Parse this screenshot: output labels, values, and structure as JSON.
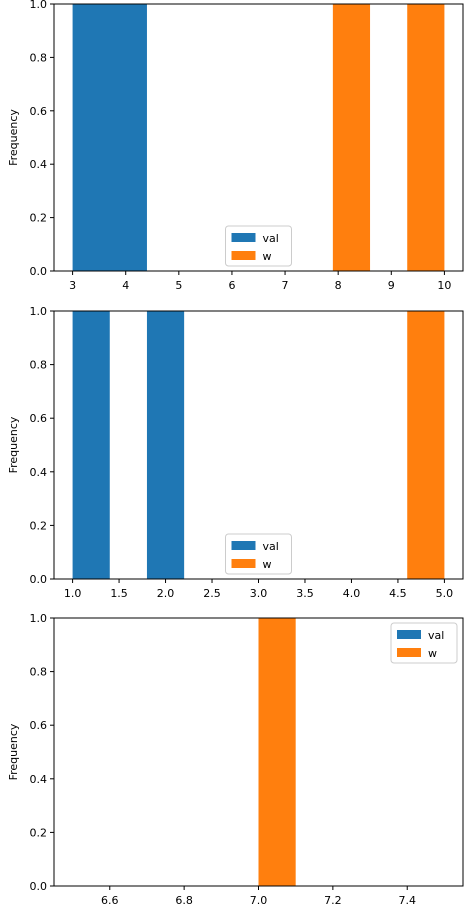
{
  "chart_data": [
    {
      "type": "histogram",
      "ylabel": "Frequency",
      "xlim": [
        2.65,
        10.35
      ],
      "ylim": [
        0,
        1.0
      ],
      "xticks": [
        "3",
        "4",
        "5",
        "6",
        "7",
        "8",
        "9",
        "10"
      ],
      "yticks": [
        "0.0",
        "0.2",
        "0.4",
        "0.6",
        "0.8",
        "1.0"
      ],
      "legend_position": "bottom-center",
      "series": [
        {
          "name": "val",
          "color": "#1f77b4",
          "bars": [
            {
              "x0": 3.0,
              "x1": 4.4,
              "count": 1
            }
          ]
        },
        {
          "name": "w",
          "color": "#ff7f0e",
          "bars": [
            {
              "x0": 7.9,
              "x1": 8.6,
              "count": 1
            },
            {
              "x0": 9.3,
              "x1": 10.0,
              "count": 1
            }
          ]
        }
      ]
    },
    {
      "type": "histogram",
      "ylabel": "Frequency",
      "xlim": [
        0.8,
        5.2
      ],
      "ylim": [
        0,
        1.0
      ],
      "xticks": [
        "1.0",
        "1.5",
        "2.0",
        "2.5",
        "3.0",
        "3.5",
        "4.0",
        "4.5",
        "5.0"
      ],
      "yticks": [
        "0.0",
        "0.2",
        "0.4",
        "0.6",
        "0.8",
        "1.0"
      ],
      "legend_position": "bottom-center",
      "series": [
        {
          "name": "val",
          "color": "#1f77b4",
          "bars": [
            {
              "x0": 1.0,
              "x1": 1.4,
              "count": 1
            },
            {
              "x0": 1.8,
              "x1": 2.2,
              "count": 1
            }
          ]
        },
        {
          "name": "w",
          "color": "#ff7f0e",
          "bars": [
            {
              "x0": 4.6,
              "x1": 5.0,
              "count": 1
            }
          ]
        }
      ]
    },
    {
      "type": "histogram",
      "ylabel": "Frequency",
      "xlim": [
        6.45,
        7.55
      ],
      "ylim": [
        0,
        1.0
      ],
      "xticks": [
        "6.6",
        "6.8",
        "7.0",
        "7.2",
        "7.4"
      ],
      "yticks": [
        "0.0",
        "0.2",
        "0.4",
        "0.6",
        "0.8",
        "1.0"
      ],
      "legend_position": "top-right",
      "series": [
        {
          "name": "val",
          "color": "#1f77b4",
          "bars": []
        },
        {
          "name": "w",
          "color": "#ff7f0e",
          "bars": [
            {
              "x0": 7.0,
              "x1": 7.1,
              "count": 1
            }
          ]
        }
      ]
    }
  ]
}
